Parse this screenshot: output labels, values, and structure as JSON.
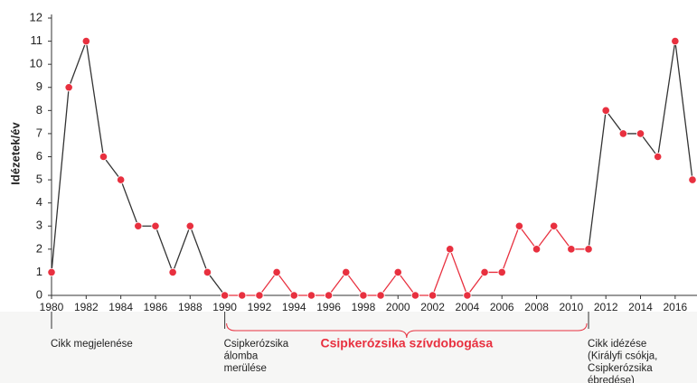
{
  "chart_data": {
    "type": "line",
    "y_label": "Idézetek/év",
    "x": [
      1980,
      1981,
      1982,
      1983,
      1984,
      1985,
      1986,
      1987,
      1988,
      1989,
      1990,
      1991,
      1992,
      1993,
      1994,
      1995,
      1996,
      1997,
      1998,
      1999,
      2000,
      2001,
      2002,
      2003,
      2004,
      2005,
      2006,
      2007,
      2008,
      2009,
      2010,
      2011,
      2012,
      2013,
      2014,
      2015,
      2016,
      2017
    ],
    "series": [
      {
        "values": [
          1,
          9,
          11,
          6,
          5,
          3,
          3,
          1,
          3,
          1,
          0,
          0,
          0,
          1,
          0,
          0,
          0,
          1,
          0,
          0,
          1,
          0,
          0,
          2,
          0,
          1,
          1,
          3,
          2,
          3,
          2,
          2,
          8,
          7,
          7,
          6,
          11,
          5
        ],
        "color": "#333333",
        "marker_color": "#e8303f"
      }
    ],
    "highlight_range": [
      1990,
      2011
    ],
    "highlight_color": "#e8303f",
    "xlim": [
      1980,
      2017
    ],
    "xticks": [
      1980,
      1982,
      1984,
      1986,
      1988,
      1990,
      1992,
      1994,
      1996,
      1998,
      2000,
      2002,
      2004,
      2006,
      2008,
      2010,
      2012,
      2014,
      2016
    ],
    "ylim": [
      0,
      12
    ],
    "yticks": [
      0,
      1,
      2,
      3,
      4,
      5,
      6,
      7,
      8,
      9,
      10,
      11,
      12
    ],
    "annotations": [
      {
        "year": 1980,
        "lines": [
          "Cikk megjelenése"
        ]
      },
      {
        "year": 1990,
        "lines": [
          "Csipkerózsika",
          "álomba",
          "merülése"
        ]
      },
      {
        "year": 2011,
        "lines": [
          "Cikk idézése",
          "(Királyfi csókja,",
          "Csipkerózsika",
          "ébredése)"
        ]
      }
    ],
    "brace_label": "Csipkerózsika szívdobogása"
  }
}
